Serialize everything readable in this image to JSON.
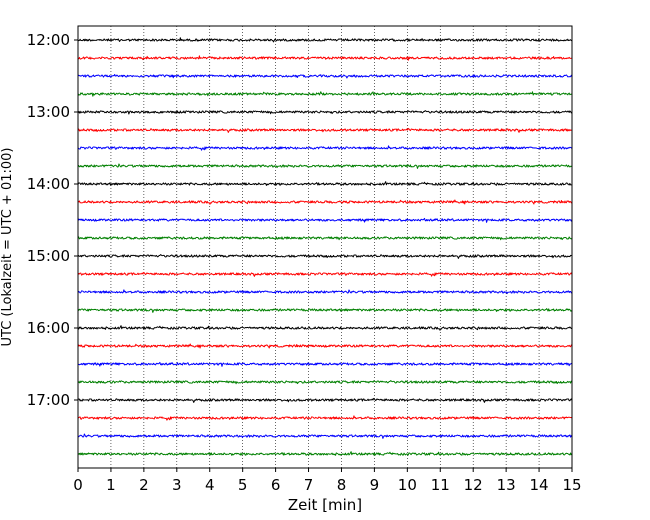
{
  "chart_data": {
    "type": "line",
    "title": "",
    "xlabel": "Zeit  [min]",
    "ylabel": "UTC (Lokalzeit = UTC + 01:00)",
    "xlim": [
      0,
      15
    ],
    "x_ticks": [
      "0",
      "1",
      "2",
      "3",
      "4",
      "5",
      "6",
      "7",
      "8",
      "9",
      "10",
      "11",
      "12",
      "13",
      "14",
      "15"
    ],
    "y_ticks": [
      "12:00",
      "13:00",
      "14:00",
      "15:00",
      "16:00",
      "17:00"
    ],
    "trace_interval_minutes": 15,
    "start_time": "12:00",
    "grid": "vertical dotted",
    "trace_colors": [
      "#000000",
      "#ff0000",
      "#0000ff",
      "#008000"
    ],
    "series": [
      {
        "time": "12:00",
        "color": "#000000"
      },
      {
        "time": "12:15",
        "color": "#ff0000"
      },
      {
        "time": "12:30",
        "color": "#0000ff"
      },
      {
        "time": "12:45",
        "color": "#008000"
      },
      {
        "time": "13:00",
        "color": "#000000"
      },
      {
        "time": "13:15",
        "color": "#ff0000"
      },
      {
        "time": "13:30",
        "color": "#0000ff"
      },
      {
        "time": "13:45",
        "color": "#008000"
      },
      {
        "time": "14:00",
        "color": "#000000"
      },
      {
        "time": "14:15",
        "color": "#ff0000"
      },
      {
        "time": "14:30",
        "color": "#0000ff"
      },
      {
        "time": "14:45",
        "color": "#008000"
      },
      {
        "time": "15:00",
        "color": "#000000"
      },
      {
        "time": "15:15",
        "color": "#ff0000"
      },
      {
        "time": "15:30",
        "color": "#0000ff"
      },
      {
        "time": "15:45",
        "color": "#008000"
      },
      {
        "time": "16:00",
        "color": "#000000"
      },
      {
        "time": "16:15",
        "color": "#ff0000"
      },
      {
        "time": "16:30",
        "color": "#0000ff"
      },
      {
        "time": "16:45",
        "color": "#008000"
      },
      {
        "time": "17:00",
        "color": "#000000"
      },
      {
        "time": "17:15",
        "color": "#ff0000"
      },
      {
        "time": "17:30",
        "color": "#0000ff"
      },
      {
        "time": "17:45",
        "color": "#008000"
      }
    ]
  }
}
